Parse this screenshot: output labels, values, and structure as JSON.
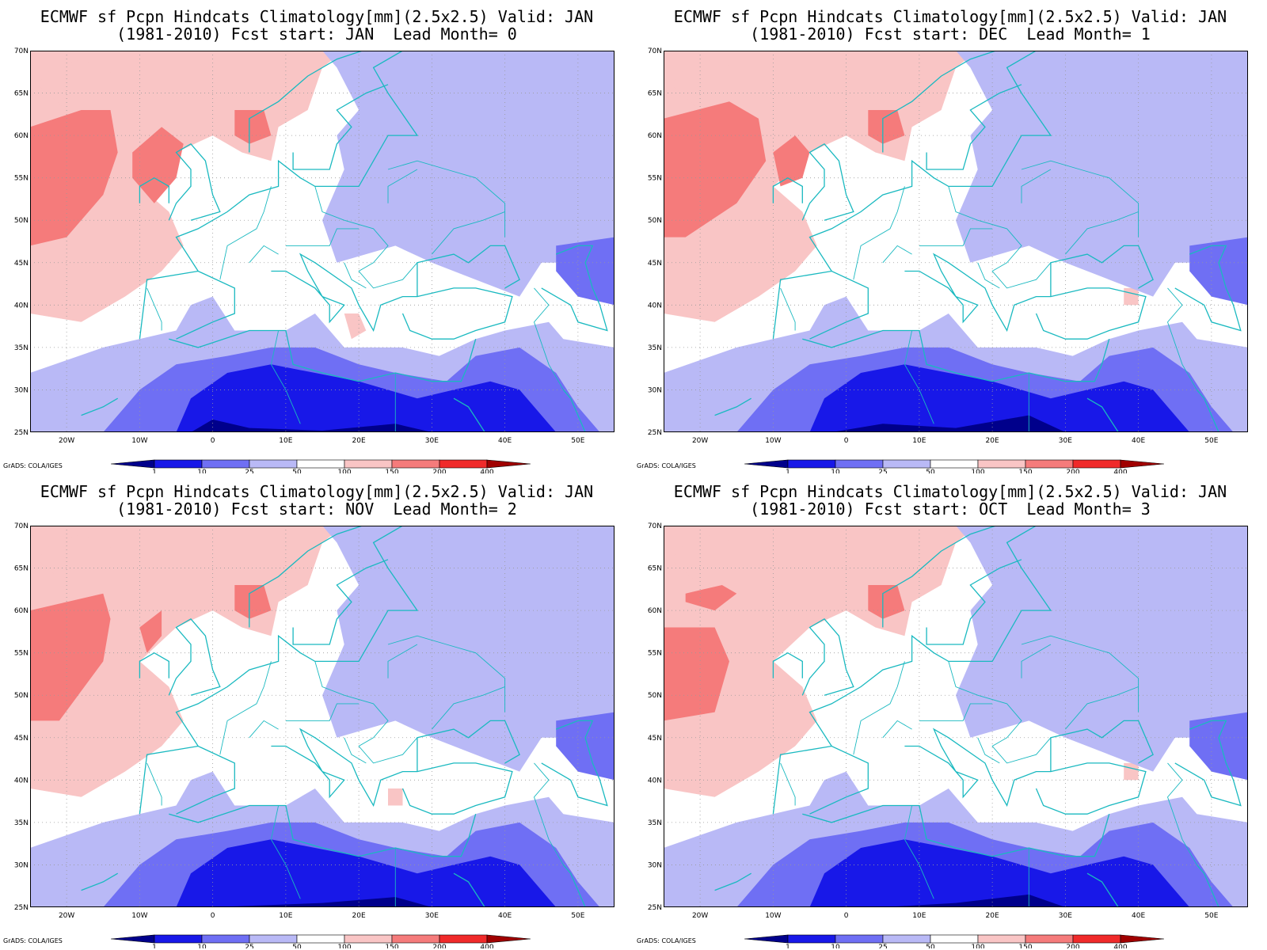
{
  "colors": {
    "levels": [
      "#00008b",
      "#1818e8",
      "#6f6ff4",
      "#b9b9f6",
      "#ffffff",
      "#f9c5c5",
      "#f57b7b",
      "#f02a2a",
      "#a00000"
    ],
    "coast": "#1ab9c0",
    "grid": "#9a9a9a"
  },
  "axes": {
    "lat_labels": [
      "70N",
      "65N",
      "60N",
      "55N",
      "50N",
      "45N",
      "40N",
      "35N",
      "30N",
      "25N"
    ],
    "lon_labels": [
      "20W",
      "10W",
      "0",
      "10E",
      "20E",
      "30E",
      "40E",
      "50E"
    ],
    "lat_values": [
      70,
      65,
      60,
      55,
      50,
      45,
      40,
      35,
      30,
      25
    ],
    "lon_values": [
      -20,
      -10,
      0,
      10,
      20,
      30,
      40,
      50
    ],
    "xlim": [
      -25,
      55
    ],
    "ylim": [
      25,
      70
    ]
  },
  "colorbar": {
    "labels": [
      "1",
      "10",
      "25",
      "50",
      "100",
      "150",
      "200",
      "400"
    ]
  },
  "credit": "GrADS: COLA/IGES",
  "panels": [
    {
      "title_line1": "ECMWF sf Pcpn Hindcats Climatology[mm](2.5x2.5) Valid: JAN",
      "title_line2": "(1981-2010) Fcst start: JAN  Lead Month= 0"
    },
    {
      "title_line1": "ECMWF sf Pcpn Hindcats Climatology[mm](2.5x2.5) Valid: JAN",
      "title_line2": "(1981-2010) Fcst start: DEC  Lead Month= 1"
    },
    {
      "title_line1": "ECMWF sf Pcpn Hindcats Climatology[mm](2.5x2.5) Valid: JAN",
      "title_line2": "(1981-2010) Fcst start: NOV  Lead Month= 2"
    },
    {
      "title_line1": "ECMWF sf Pcpn Hindcats Climatology[mm](2.5x2.5) Valid: JAN",
      "title_line2": "(1981-2010) Fcst start: OCT  Lead Month= 3"
    }
  ]
}
